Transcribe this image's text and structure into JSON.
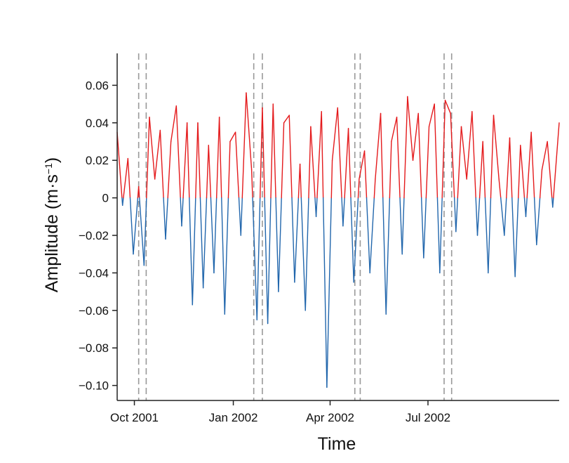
{
  "chart_data": {
    "type": "line",
    "title": "",
    "xlabel": "Time",
    "ylabel_main": "Amplitude (m·s",
    "ylabel_sup": "−1",
    "ylabel_tail": ")",
    "ylim": [
      -0.108,
      0.077
    ],
    "y_ticks": [
      {
        "value": 0.06,
        "label": "0.06"
      },
      {
        "value": 0.04,
        "label": "0.04"
      },
      {
        "value": 0.02,
        "label": "0.02"
      },
      {
        "value": 0.0,
        "label": "0"
      },
      {
        "value": -0.02,
        "label": "−0.02"
      },
      {
        "value": -0.04,
        "label": "−0.04"
      },
      {
        "value": -0.06,
        "label": "−0.06"
      },
      {
        "value": -0.08,
        "label": "−0.08"
      },
      {
        "value": -0.1,
        "label": "−0.10"
      }
    ],
    "x_domain": [
      "2001-09-15",
      "2002-10-31"
    ],
    "x_ticks": [
      {
        "date": "2001-10-01",
        "label": "Oct 2001"
      },
      {
        "date": "2002-01-01",
        "label": "Jan 2002"
      },
      {
        "date": "2002-04-01",
        "label": "Apr 2002"
      },
      {
        "date": "2002-07-01",
        "label": "Jul 2002"
      }
    ],
    "event_lines": [
      "2001-10-05",
      "2001-10-12",
      "2002-01-20",
      "2002-01-28",
      "2002-04-24",
      "2002-04-29",
      "2002-07-16",
      "2002-07-23"
    ],
    "threshold": 0.0,
    "colors": {
      "line_low": "#2166ac",
      "line_high": "#e41a1c",
      "event_line": "#999999",
      "axis": "#222222"
    },
    "series": [
      {
        "name": "Amplitude",
        "x": [
          "2001-09-15",
          "2001-09-20",
          "2001-09-25",
          "2001-09-30",
          "2001-10-05",
          "2001-10-10",
          "2001-10-15",
          "2001-10-20",
          "2001-10-25",
          "2001-10-30",
          "2001-11-04",
          "2001-11-09",
          "2001-11-14",
          "2001-11-19",
          "2001-11-24",
          "2001-11-29",
          "2001-12-04",
          "2001-12-09",
          "2001-12-14",
          "2001-12-19",
          "2001-12-24",
          "2001-12-29",
          "2002-01-03",
          "2002-01-08",
          "2002-01-13",
          "2002-01-18",
          "2002-01-23",
          "2002-01-28",
          "2002-02-02",
          "2002-02-07",
          "2002-02-12",
          "2002-02-17",
          "2002-02-22",
          "2002-02-27",
          "2002-03-04",
          "2002-03-09",
          "2002-03-14",
          "2002-03-19",
          "2002-03-24",
          "2002-03-29",
          "2002-04-03",
          "2002-04-08",
          "2002-04-13",
          "2002-04-18",
          "2002-04-23",
          "2002-04-28",
          "2002-05-03",
          "2002-05-08",
          "2002-05-13",
          "2002-05-18",
          "2002-05-23",
          "2002-05-28",
          "2002-06-02",
          "2002-06-07",
          "2002-06-12",
          "2002-06-17",
          "2002-06-22",
          "2002-06-27",
          "2002-07-02",
          "2002-07-07",
          "2002-07-12",
          "2002-07-17",
          "2002-07-22",
          "2002-07-27",
          "2002-08-01",
          "2002-08-06",
          "2002-08-11",
          "2002-08-16",
          "2002-08-21",
          "2002-08-26",
          "2002-08-31",
          "2002-09-05",
          "2002-09-10",
          "2002-09-15",
          "2002-09-20",
          "2002-09-25",
          "2002-09-30",
          "2002-10-05",
          "2002-10-10",
          "2002-10-15",
          "2002-10-20",
          "2002-10-25",
          "2002-10-31"
        ],
        "values": [
          0.035,
          -0.004,
          0.021,
          -0.03,
          0.006,
          -0.036,
          0.043,
          0.01,
          0.036,
          -0.022,
          0.03,
          0.049,
          -0.015,
          0.04,
          -0.057,
          0.04,
          -0.048,
          0.028,
          -0.04,
          0.043,
          -0.062,
          0.03,
          0.035,
          -0.02,
          0.056,
          0.015,
          -0.065,
          0.048,
          -0.067,
          0.05,
          -0.05,
          0.04,
          0.044,
          -0.045,
          0.018,
          -0.06,
          0.038,
          -0.01,
          0.046,
          -0.101,
          0.02,
          0.048,
          -0.015,
          0.037,
          -0.045,
          0.01,
          0.025,
          -0.04,
          0.01,
          0.045,
          -0.062,
          0.03,
          0.043,
          -0.03,
          0.054,
          0.02,
          0.045,
          -0.032,
          0.038,
          0.05,
          -0.04,
          0.052,
          0.045,
          -0.018,
          0.038,
          0.01,
          0.046,
          -0.02,
          0.03,
          -0.04,
          0.044,
          0.01,
          -0.02,
          0.032,
          -0.042,
          0.028,
          -0.01,
          0.035,
          -0.025,
          0.015,
          0.03,
          -0.005,
          0.04
        ]
      }
    ]
  }
}
